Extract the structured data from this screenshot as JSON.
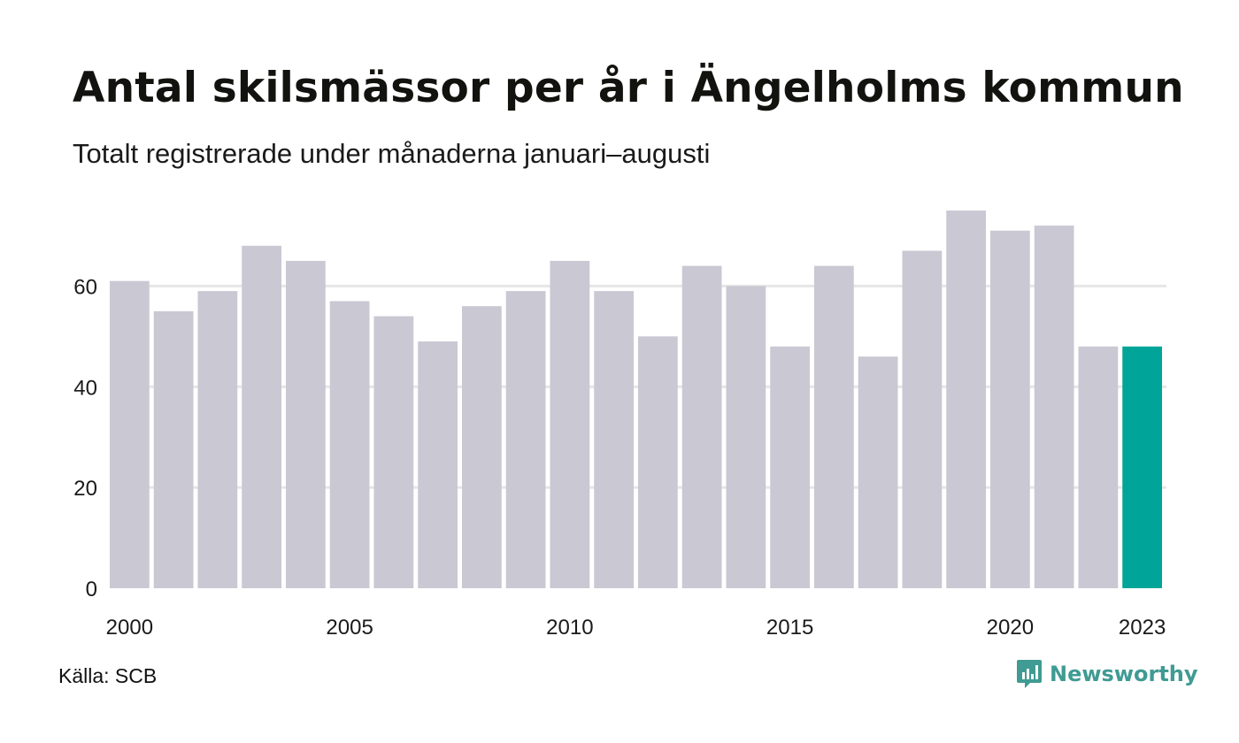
{
  "chart_data": {
    "type": "bar",
    "title": "Antal skilsmässor per år i Ängelholms kommun",
    "subtitle": "Totalt registrerade under månaderna januari–augusti",
    "categories": [
      "2000",
      "2001",
      "2002",
      "2003",
      "2004",
      "2005",
      "2006",
      "2007",
      "2008",
      "2009",
      "2010",
      "2011",
      "2012",
      "2013",
      "2014",
      "2015",
      "2016",
      "2017",
      "2018",
      "2019",
      "2020",
      "2021",
      "2022",
      "2023"
    ],
    "values": [
      61,
      55,
      59,
      68,
      65,
      57,
      54,
      49,
      56,
      59,
      65,
      59,
      50,
      64,
      60,
      48,
      64,
      46,
      67,
      75,
      71,
      72,
      48,
      48
    ],
    "x_tick_labels": [
      "2000",
      "2005",
      "2010",
      "2015",
      "2020",
      "2023"
    ],
    "y_ticks": [
      0,
      20,
      40,
      60
    ],
    "ylim": [
      0,
      75
    ],
    "grid": true,
    "highlight_category": "2023",
    "colors": {
      "bar": "#c9c8d3",
      "highlight": "#00a498",
      "grid": "#e6e6e6",
      "axis_text": "#1a1a1a"
    }
  },
  "source": "Källa: SCB",
  "brand": {
    "name": "Newsworthy",
    "icon": "newsworthy-logo-icon",
    "color": "#3f9b93"
  }
}
